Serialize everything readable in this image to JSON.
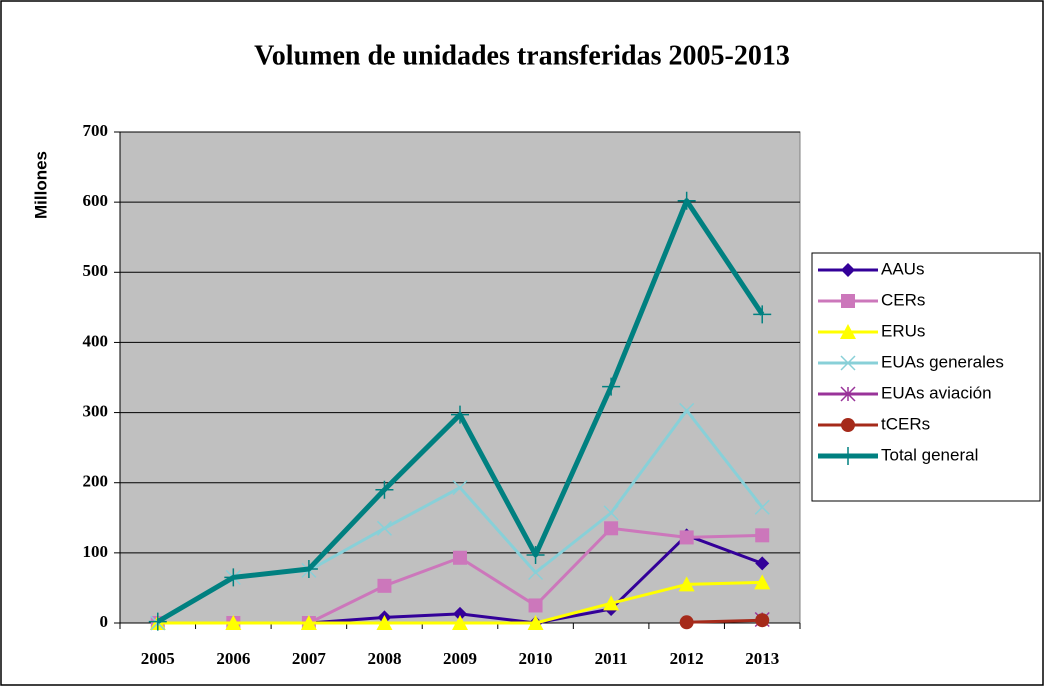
{
  "chart_data": {
    "type": "line",
    "title": "Volumen de unidades transferidas 2005-2013",
    "y_label": "Millones",
    "categories": [
      "2005",
      "2006",
      "2007",
      "2008",
      "2009",
      "2010",
      "2011",
      "2012",
      "2013"
    ],
    "series": [
      {
        "name": "AAUs",
        "color": "#330099",
        "marker": "diamond",
        "values": [
          0,
          0,
          0,
          8,
          13,
          0,
          20,
          125,
          85
        ]
      },
      {
        "name": "CERs",
        "color": "#cc77bb",
        "marker": "square",
        "values": [
          0,
          0,
          0,
          53,
          93,
          25,
          135,
          122,
          125
        ]
      },
      {
        "name": "ERUs",
        "color": "#ffff00",
        "marker": "triangle",
        "values": [
          0,
          0,
          0,
          0,
          0,
          0,
          28,
          55,
          58
        ]
      },
      {
        "name": "EUAs generales",
        "color": "#88d0d8",
        "marker": "x",
        "values": [
          0,
          65,
          75,
          135,
          193,
          72,
          157,
          303,
          165
        ]
      },
      {
        "name": "EUAs aviación",
        "color": "#993399",
        "marker": "star",
        "values": [
          null,
          null,
          null,
          null,
          null,
          null,
          null,
          null,
          5
        ]
      },
      {
        "name": "tCERs",
        "color": "#a52a1a",
        "marker": "circle",
        "values": [
          null,
          null,
          null,
          null,
          null,
          null,
          null,
          1,
          4
        ]
      },
      {
        "name": "Total general",
        "color": "#008080",
        "marker": "plus",
        "values": [
          2,
          65,
          77,
          190,
          297,
          97,
          337,
          602,
          440
        ]
      }
    ],
    "ylim": [
      0,
      700
    ],
    "yticks": [
      0,
      100,
      200,
      300,
      400,
      500,
      600,
      700
    ],
    "grid": true,
    "legend": "right"
  }
}
